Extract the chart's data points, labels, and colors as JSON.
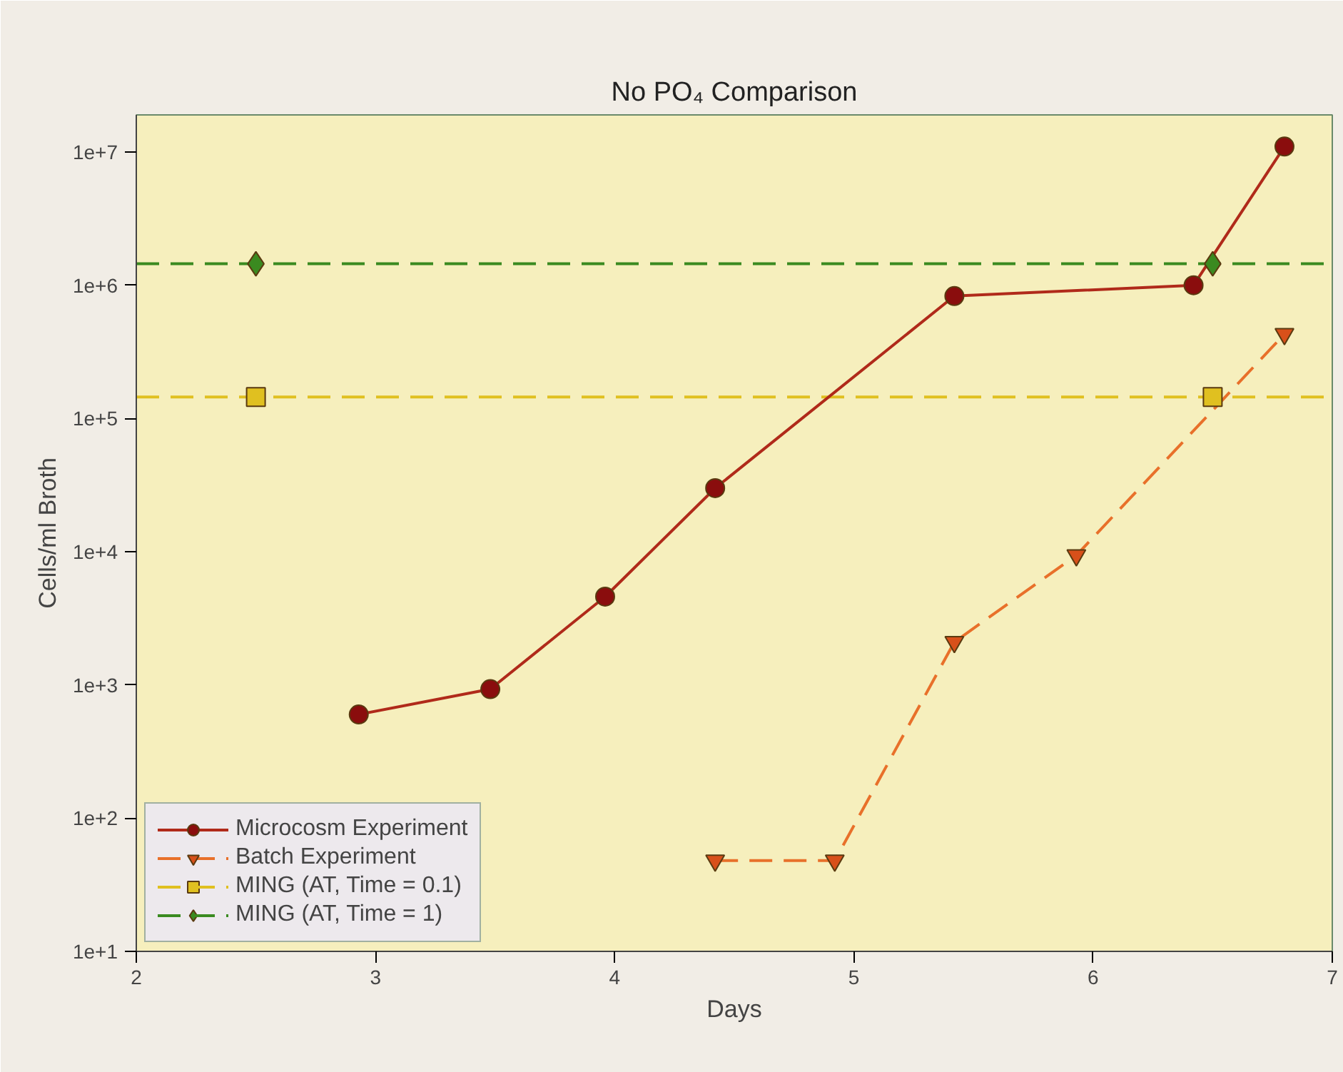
{
  "chart_data": {
    "type": "line",
    "title": "No PO₄ Comparison",
    "xlabel": "Days",
    "ylabel": "Cells/ml Broth",
    "log": "y",
    "grid": false,
    "legend": "bottom left",
    "xlim": [
      2,
      7
    ],
    "xticks": [
      2,
      3,
      4,
      5,
      6,
      7
    ],
    "ylim": [
      10,
      19000000
    ],
    "yticks": [
      {
        "value": 10,
        "label": "1e+1"
      },
      {
        "value": 100,
        "label": "1e+2"
      },
      {
        "value": 1000,
        "label": "1e+3"
      },
      {
        "value": 10000,
        "label": "1e+4"
      },
      {
        "value": 100000,
        "label": "1e+5"
      },
      {
        "value": 1000000,
        "label": "1e+6"
      },
      {
        "value": 10000000,
        "label": "1e+7"
      }
    ],
    "ref_lines": [
      {
        "axis": "y",
        "value": 145000,
        "color": "#e0c020",
        "line_style": "dashed"
      },
      {
        "axis": "y",
        "value": 1450000,
        "color": "#3a8a20",
        "line_style": "dashed"
      }
    ],
    "series": [
      {
        "name": "Microcosm Experiment",
        "color": "#b02a1a",
        "marker": "circle",
        "line_style": "solid",
        "x": [
          2.93,
          3.48,
          3.96,
          4.42,
          5.42,
          6.42,
          6.8
        ],
        "values": [
          600,
          930,
          4600,
          30000,
          830000,
          1000000,
          11000000
        ]
      },
      {
        "name": "Batch Experiment",
        "color": "#e8702a",
        "marker": "triangle",
        "line_style": "dashed",
        "x": [
          4.42,
          4.92,
          5.42,
          5.93,
          6.8
        ],
        "values": [
          48,
          48,
          2100,
          9400,
          430000
        ]
      },
      {
        "name": "MING (AT, Time = 0.1)",
        "type": "scatter",
        "color": "#e0c020",
        "marker": "square",
        "x": [
          2.5,
          6.5
        ],
        "values": [
          145000,
          145000
        ]
      },
      {
        "name": "MING (AT, Time = 1)",
        "type": "scatter",
        "color": "#3a8a20",
        "marker": "diamond",
        "x": [
          2.5,
          6.5
        ],
        "values": [
          1450000,
          1450000
        ]
      }
    ]
  }
}
